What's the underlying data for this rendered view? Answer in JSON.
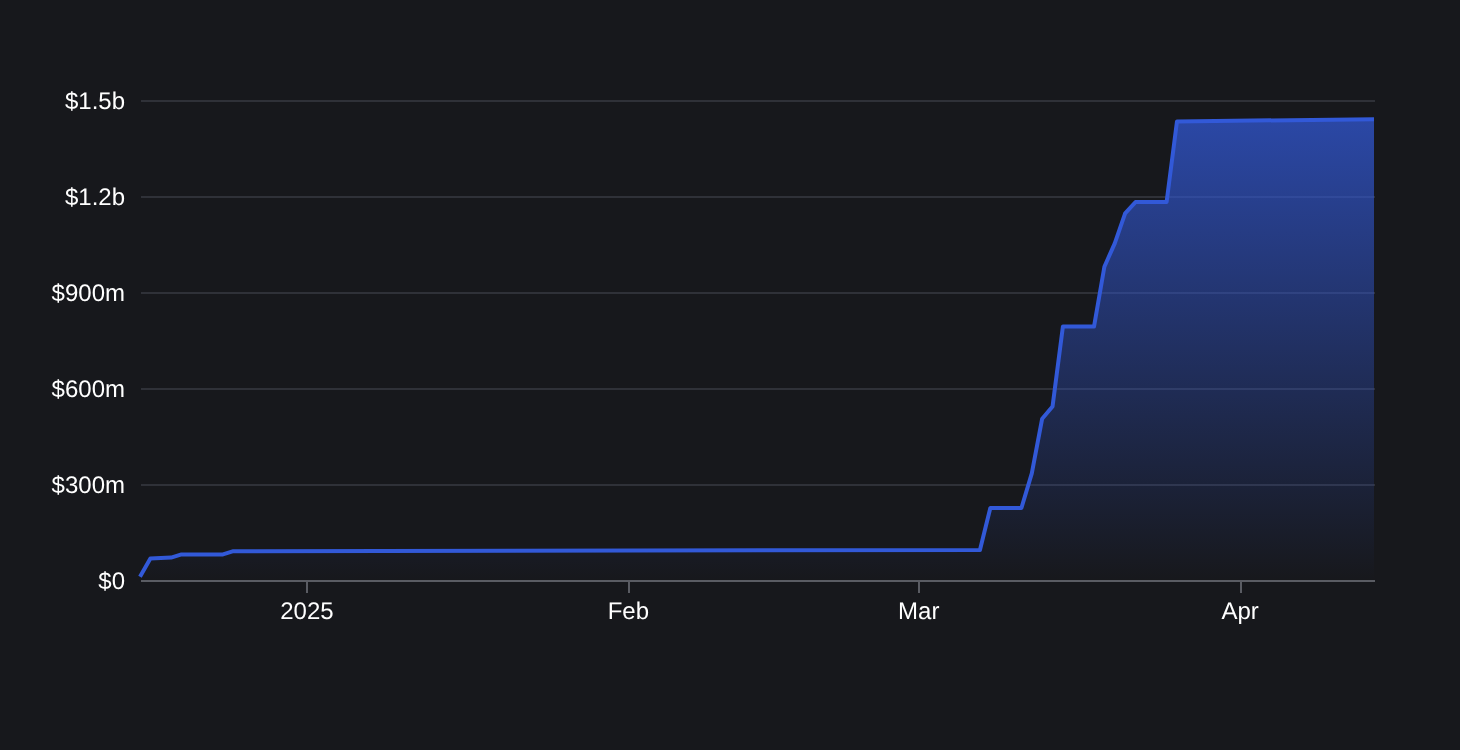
{
  "chart_data": {
    "type": "area",
    "x": [
      "2024-12-16",
      "2024-12-17",
      "2024-12-19",
      "2024-12-20",
      "2024-12-24",
      "2024-12-25",
      "2025-03-07",
      "2025-03-08",
      "2025-03-11",
      "2025-03-12",
      "2025-03-13",
      "2025-03-14",
      "2025-03-15",
      "2025-03-18",
      "2025-03-19",
      "2025-03-20",
      "2025-03-21",
      "2025-03-22",
      "2025-03-25",
      "2025-03-26",
      "2025-04-14"
    ],
    "series": [
      {
        "color": "#3259d8",
        "values": [
          10000000,
          67000000,
          70000000,
          80000000,
          80000000,
          90000000,
          94000000,
          225000000,
          225000000,
          333000000,
          504000000,
          542000000,
          792000000,
          792000000,
          979000000,
          1052000000,
          1146000000,
          1181000000,
          1181000000,
          1433000000,
          1440000000
        ]
      }
    ],
    "xlim": [
      "2024-12-16",
      "2025-04-14"
    ],
    "xticks": [
      {
        "value": "2025-01-01",
        "label": "2025"
      },
      {
        "value": "2025-02-01",
        "label": "Feb"
      },
      {
        "value": "2025-03-01",
        "label": "Mar"
      },
      {
        "value": "2025-04-01",
        "label": "Apr"
      }
    ],
    "ylim": [
      0,
      1500000000
    ],
    "yticks": [
      {
        "value": 0,
        "label": "$0"
      },
      {
        "value": 300000000,
        "label": "$300m"
      },
      {
        "value": 600000000,
        "label": "$600m"
      },
      {
        "value": 900000000,
        "label": "$900m"
      },
      {
        "value": 1200000000,
        "label": "$1.2b"
      },
      {
        "value": 1500000000,
        "label": "$1.5b"
      }
    ],
    "grid": "y"
  }
}
